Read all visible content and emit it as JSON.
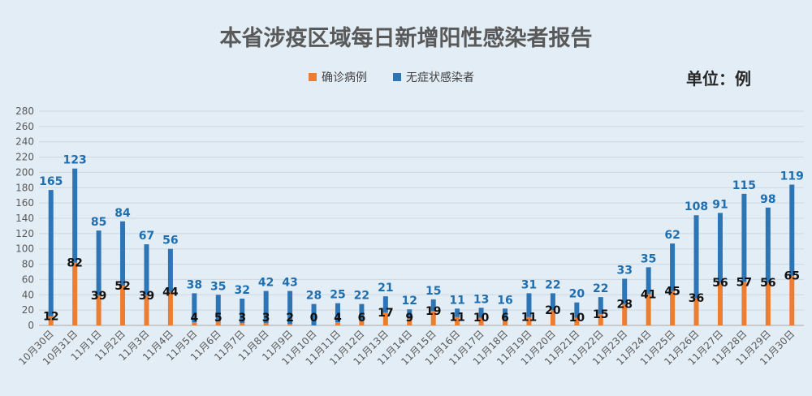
{
  "chart_data": {
    "type": "bar",
    "stacked": true,
    "title": "本省涉疫区域每日新增阳性感染者报告",
    "unit_label": "单位：例",
    "legend_position": "top",
    "grid": true,
    "ylim": [
      0,
      280
    ],
    "yticks": [
      0,
      20,
      40,
      60,
      80,
      100,
      120,
      140,
      160,
      180,
      200,
      220,
      240,
      260,
      280
    ],
    "categories": [
      "10月30日",
      "10月31日",
      "11月1日",
      "11月2日",
      "11月3日",
      "11月4日",
      "11月5日",
      "11月6日",
      "11月7日",
      "11月8日",
      "11月9日",
      "11月10日",
      "11月11日",
      "11月12日",
      "11月13日",
      "11月14日",
      "11月15日",
      "11月16日",
      "11月17日",
      "11月18日",
      "11月19日",
      "11月20日",
      "11月21日",
      "11月22日",
      "11月23日",
      "11月24日",
      "11月25日",
      "11月26日",
      "11月27日",
      "11月28日",
      "11月29日",
      "11月30日"
    ],
    "series": [
      {
        "name": "确诊病例",
        "color": "#ed7d31",
        "values": [
          12,
          82,
          39,
          52,
          39,
          44,
          4,
          5,
          3,
          3,
          2,
          0,
          4,
          6,
          17,
          9,
          19,
          11,
          10,
          6,
          11,
          20,
          10,
          15,
          28,
          41,
          45,
          36,
          56,
          57,
          56,
          65
        ]
      },
      {
        "name": "无症状感染者",
        "color": "#2e75b6",
        "values": [
          165,
          123,
          85,
          84,
          67,
          56,
          38,
          35,
          32,
          42,
          43,
          28,
          25,
          22,
          21,
          12,
          15,
          11,
          13,
          16,
          31,
          22,
          20,
          22,
          33,
          35,
          62,
          108,
          91,
          115,
          98,
          119
        ]
      }
    ]
  }
}
